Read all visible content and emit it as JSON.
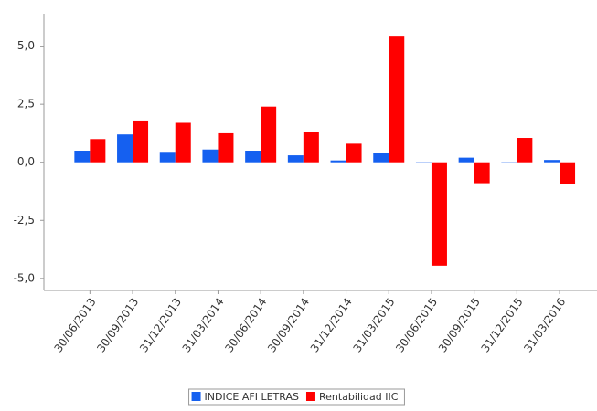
{
  "chart_data": {
    "type": "bar",
    "categories": [
      "30/06/2013",
      "30/09/2013",
      "31/12/2013",
      "31/03/2014",
      "30/06/2014",
      "30/09/2014",
      "31/12/2014",
      "31/03/2015",
      "30/06/2015",
      "30/09/2015",
      "31/12/2015",
      "31/03/2016"
    ],
    "series": [
      {
        "name": "INDICE AFI LETRAS",
        "color": "#1560f0",
        "values": [
          0.5,
          1.2,
          0.45,
          0.55,
          0.5,
          0.3,
          0.08,
          0.4,
          -0.05,
          0.2,
          -0.05,
          0.1
        ]
      },
      {
        "name": "Rentabilidad IIC",
        "color": "#ff0000",
        "values": [
          1.0,
          1.8,
          1.7,
          1.25,
          2.4,
          1.3,
          0.8,
          5.45,
          -4.45,
          -0.9,
          1.05,
          -0.95
        ]
      }
    ],
    "ylim": [
      -5.4,
      6.4
    ],
    "yticks": [
      {
        "value": -5,
        "label": "-5,0"
      },
      {
        "value": -2.5,
        "label": "-2,5"
      },
      {
        "value": 0,
        "label": "0,0"
      },
      {
        "value": 2.5,
        "label": "2,5"
      },
      {
        "value": 5,
        "label": "5,0"
      }
    ],
    "legend": "bottom"
  }
}
